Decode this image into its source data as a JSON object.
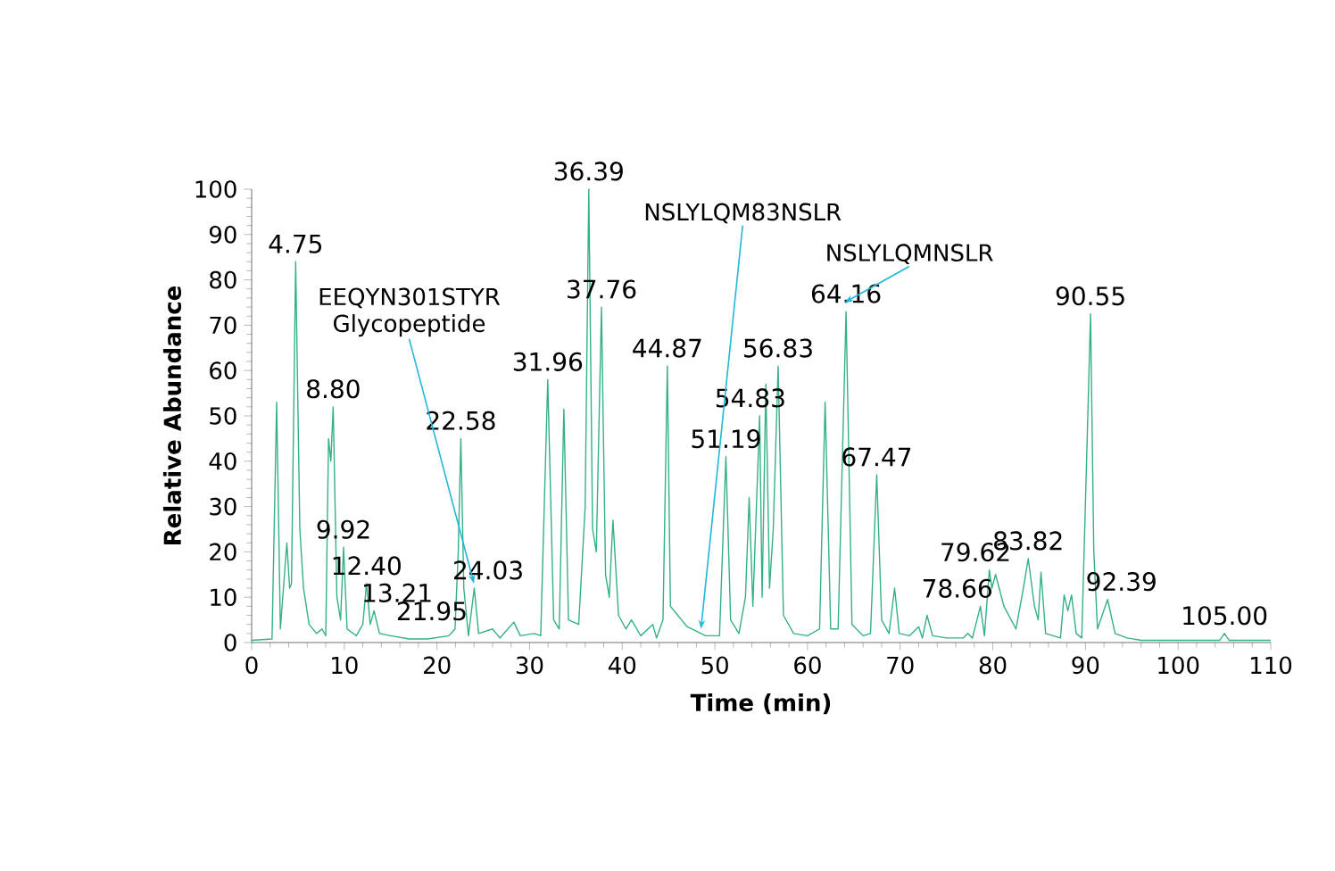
{
  "chart_data": {
    "type": "line",
    "xlabel": "Time (min)",
    "ylabel": "Relative Abundance",
    "xlim": [
      0,
      110
    ],
    "ylim": [
      0,
      100
    ],
    "xticks": [
      0,
      10,
      20,
      30,
      40,
      50,
      60,
      70,
      80,
      90,
      100,
      110
    ],
    "yticks": [
      0,
      10,
      20,
      30,
      40,
      50,
      60,
      70,
      80,
      90,
      100
    ],
    "series": [
      {
        "color": "#34b088",
        "x": [
          0,
          2.2,
          2.7,
          3.1,
          3.8,
          4.1,
          4.3,
          4.75,
          5.2,
          5.6,
          6.2,
          7,
          7.6,
          8.0,
          8.3,
          8.55,
          8.8,
          9.2,
          9.6,
          9.92,
          10.3,
          11.3,
          12.0,
          12.4,
          12.8,
          13.21,
          13.8,
          15,
          17,
          19,
          21.3,
          21.95,
          22.3,
          22.58,
          22.9,
          23.4,
          24.03,
          24.5,
          26,
          26.8,
          28.3,
          29,
          30.5,
          31.2,
          31.96,
          32.6,
          33.2,
          33.7,
          34.2,
          35.3,
          36.0,
          36.39,
          36.8,
          37.2,
          37.76,
          38.2,
          38.6,
          39.0,
          39.6,
          40.4,
          41,
          42,
          43.3,
          43.7,
          44.4,
          44.87,
          45.2,
          45.8,
          47,
          49,
          50.5,
          51.19,
          51.7,
          52.6,
          53.3,
          53.7,
          54.1,
          54.83,
          55.1,
          55.5,
          55.9,
          56.3,
          56.83,
          57.4,
          58.5,
          60,
          61.3,
          61.9,
          62.5,
          63.3,
          64.16,
          64.8,
          66,
          66.8,
          67.47,
          68,
          68.8,
          69.4,
          69.9,
          71,
          72,
          72.4,
          72.9,
          73.5,
          75,
          76.8,
          77.3,
          77.8,
          78.66,
          79.1,
          79.62,
          79.9,
          80.3,
          81.2,
          82.5,
          83.3,
          83.82,
          84.5,
          84.9,
          85.2,
          85.7,
          87.3,
          87.7,
          88.1,
          88.5,
          89.0,
          89.6,
          90.2,
          90.55,
          90.9,
          91.3,
          92.39,
          93.2,
          94.5,
          96,
          104.5,
          105,
          105.5,
          110
        ],
        "values": [
          0.5,
          0.8,
          53,
          3,
          22,
          12,
          13,
          84,
          25,
          12,
          4,
          2,
          3,
          1.5,
          45,
          40,
          52,
          10,
          5,
          21,
          3,
          1.5,
          4,
          13,
          4,
          7,
          2,
          1.5,
          0.8,
          0.8,
          1.5,
          3,
          20,
          45,
          12,
          1.5,
          12,
          2,
          3,
          1,
          4.5,
          1.5,
          2,
          1.5,
          58,
          5,
          3,
          51.5,
          5,
          4,
          30,
          100,
          25,
          20,
          74,
          15,
          10,
          27,
          6,
          3,
          5,
          1.5,
          4,
          1,
          5,
          61,
          8,
          6.5,
          3.5,
          1.5,
          1.5,
          41,
          5,
          2,
          10,
          32,
          8,
          50,
          10,
          57,
          12,
          25,
          61,
          6,
          2,
          1.5,
          3,
          53,
          3,
          3,
          73,
          4,
          1.5,
          2,
          37,
          5,
          2,
          12,
          2,
          1.5,
          3.5,
          1,
          6,
          1.5,
          1,
          1,
          2,
          1,
          8,
          1.5,
          16,
          12,
          15,
          8,
          3,
          12,
          18.5,
          8,
          5,
          15.5,
          2,
          1,
          10.5,
          7,
          10.5,
          2,
          1,
          46,
          72.5,
          20,
          3,
          9.5,
          2,
          1,
          0.5,
          0.5,
          2,
          0.5,
          0.5
        ]
      }
    ],
    "annotations": [
      {
        "text": "4.75",
        "x": 4.75,
        "y": 84
      },
      {
        "text": "8.80",
        "x": 8.8,
        "y": 52
      },
      {
        "text": "9.92",
        "x": 9.92,
        "y": 21
      },
      {
        "text": "12.40",
        "x": 12.4,
        "y": 13
      },
      {
        "text": "13.21",
        "x": 13.21,
        "y": 7
      },
      {
        "text": "21.95",
        "x": 21.95,
        "y": 3
      },
      {
        "text": "22.58",
        "x": 22.58,
        "y": 45
      },
      {
        "text": "24.03",
        "x": 24.03,
        "y": 12
      },
      {
        "text": "31.96",
        "x": 31.96,
        "y": 58
      },
      {
        "text": "36.39",
        "x": 36.39,
        "y": 100
      },
      {
        "text": "37.76",
        "x": 37.76,
        "y": 74
      },
      {
        "text": "44.87",
        "x": 44.87,
        "y": 61
      },
      {
        "text": "51.19",
        "x": 51.19,
        "y": 41
      },
      {
        "text": "54.83",
        "x": 54.83,
        "y": 50
      },
      {
        "text": "56.83",
        "x": 56.83,
        "y": 61
      },
      {
        "text": "64.16",
        "x": 64.16,
        "y": 73
      },
      {
        "text": "67.47",
        "x": 67.47,
        "y": 37
      },
      {
        "text": "78.66",
        "x": 78.66,
        "y": 8
      },
      {
        "text": "79.62",
        "x": 79.62,
        "y": 16
      },
      {
        "text": "83.82",
        "x": 83.82,
        "y": 18.5
      },
      {
        "text": "90.55",
        "x": 90.55,
        "y": 72.5
      },
      {
        "text": "92.39",
        "x": 92.39,
        "y": 9.5
      },
      {
        "text": "105.00",
        "x": 105,
        "y": 2
      },
      {
        "text": "EEQYN301STYR Glycopeptide",
        "x": 24.0,
        "y": 12
      },
      {
        "text": "NSLYLQM83NSLR",
        "x": 48.5,
        "y": 2
      },
      {
        "text": "NSLYLQMNSLR",
        "x": 64.0,
        "y": 74
      }
    ]
  }
}
